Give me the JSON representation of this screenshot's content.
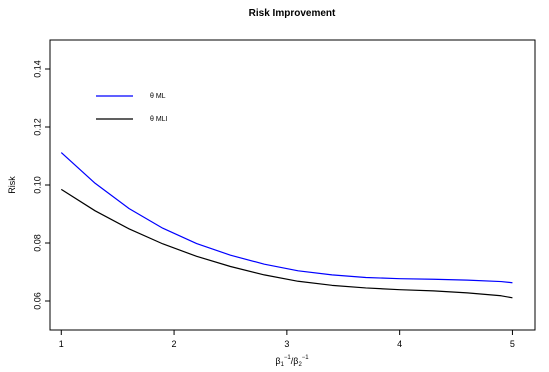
{
  "chart_data": {
    "type": "line",
    "title": "Risk Improvement",
    "xlabel": "β1⁻¹/β2⁻¹",
    "ylabel": "Risk",
    "xlim": [
      0.9,
      5.2
    ],
    "ylim": [
      0.05,
      0.15
    ],
    "x_ticks": [
      1,
      2,
      3,
      4,
      5
    ],
    "x_tick_labels": [
      "1",
      "2",
      "3",
      "4",
      "5"
    ],
    "y_ticks": [
      0.06,
      0.08,
      0.1,
      0.12,
      0.14
    ],
    "y_tick_labels": [
      "0.06",
      "0.08",
      "0.10",
      "0.12",
      "0.14"
    ],
    "grid": false,
    "legend_position": "top-left",
    "series": [
      {
        "name": "θ ML",
        "color": "#0000ff",
        "x": [
          1.0,
          1.3,
          1.6,
          1.9,
          2.2,
          2.5,
          2.8,
          3.1,
          3.4,
          3.7,
          4.0,
          4.3,
          4.6,
          4.9,
          5.0
        ],
        "y": [
          0.1112,
          0.1006,
          0.0919,
          0.0851,
          0.0798,
          0.0758,
          0.0727,
          0.0704,
          0.069,
          0.0681,
          0.0677,
          0.0675,
          0.0672,
          0.0667,
          0.0663
        ]
      },
      {
        "name": "θ MLI",
        "color": "#000000",
        "x": [
          1.0,
          1.3,
          1.6,
          1.9,
          2.2,
          2.5,
          2.8,
          3.1,
          3.4,
          3.7,
          4.0,
          4.3,
          4.6,
          4.9,
          5.0
        ],
        "y": [
          0.0985,
          0.0911,
          0.0849,
          0.0797,
          0.0754,
          0.0719,
          0.069,
          0.0668,
          0.0654,
          0.0645,
          0.0639,
          0.0635,
          0.0628,
          0.0618,
          0.0611
        ]
      }
    ]
  }
}
